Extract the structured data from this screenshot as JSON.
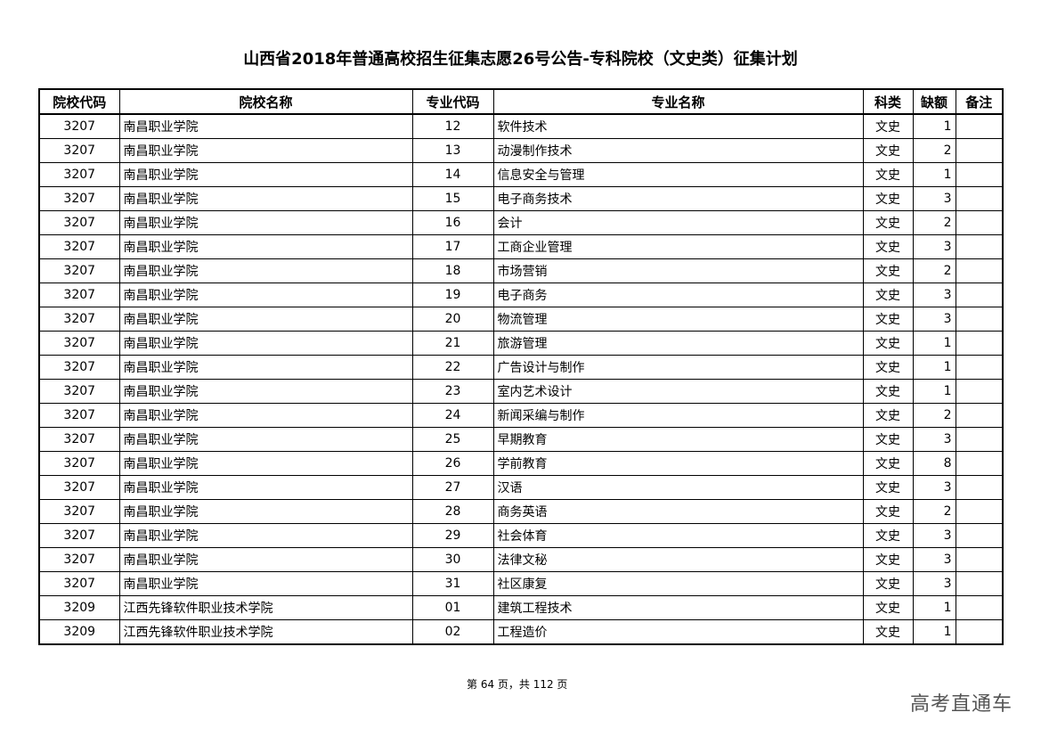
{
  "title": "山西省2018年普通高校招生征集志愿26号公告-专科院校（文史类）征集计划",
  "table": {
    "headers": [
      "院校代码",
      "院校名称",
      "专业代码",
      "专业名称",
      "科类",
      "缺额",
      "备注"
    ],
    "rows": [
      [
        "3207",
        "南昌职业学院",
        "12",
        "软件技术",
        "文史",
        "1",
        ""
      ],
      [
        "3207",
        "南昌职业学院",
        "13",
        "动漫制作技术",
        "文史",
        "2",
        ""
      ],
      [
        "3207",
        "南昌职业学院",
        "14",
        "信息安全与管理",
        "文史",
        "1",
        ""
      ],
      [
        "3207",
        "南昌职业学院",
        "15",
        "电子商务技术",
        "文史",
        "3",
        ""
      ],
      [
        "3207",
        "南昌职业学院",
        "16",
        "会计",
        "文史",
        "2",
        ""
      ],
      [
        "3207",
        "南昌职业学院",
        "17",
        "工商企业管理",
        "文史",
        "3",
        ""
      ],
      [
        "3207",
        "南昌职业学院",
        "18",
        "市场营销",
        "文史",
        "2",
        ""
      ],
      [
        "3207",
        "南昌职业学院",
        "19",
        "电子商务",
        "文史",
        "3",
        ""
      ],
      [
        "3207",
        "南昌职业学院",
        "20",
        "物流管理",
        "文史",
        "3",
        ""
      ],
      [
        "3207",
        "南昌职业学院",
        "21",
        "旅游管理",
        "文史",
        "1",
        ""
      ],
      [
        "3207",
        "南昌职业学院",
        "22",
        "广告设计与制作",
        "文史",
        "1",
        ""
      ],
      [
        "3207",
        "南昌职业学院",
        "23",
        "室内艺术设计",
        "文史",
        "1",
        ""
      ],
      [
        "3207",
        "南昌职业学院",
        "24",
        "新闻采编与制作",
        "文史",
        "2",
        ""
      ],
      [
        "3207",
        "南昌职业学院",
        "25",
        "早期教育",
        "文史",
        "3",
        ""
      ],
      [
        "3207",
        "南昌职业学院",
        "26",
        "学前教育",
        "文史",
        "8",
        ""
      ],
      [
        "3207",
        "南昌职业学院",
        "27",
        "汉语",
        "文史",
        "3",
        ""
      ],
      [
        "3207",
        "南昌职业学院",
        "28",
        "商务英语",
        "文史",
        "2",
        ""
      ],
      [
        "3207",
        "南昌职业学院",
        "29",
        "社会体育",
        "文史",
        "3",
        ""
      ],
      [
        "3207",
        "南昌职业学院",
        "30",
        "法律文秘",
        "文史",
        "3",
        ""
      ],
      [
        "3207",
        "南昌职业学院",
        "31",
        "社区康复",
        "文史",
        "3",
        ""
      ],
      [
        "3209",
        "江西先锋软件职业技术学院",
        "01",
        "建筑工程技术",
        "文史",
        "1",
        ""
      ],
      [
        "3209",
        "江西先锋软件职业技术学院",
        "02",
        "工程造价",
        "文史",
        "1",
        ""
      ]
    ]
  },
  "footer": "第 64 页，共 112 页",
  "watermark": "高考直通车"
}
